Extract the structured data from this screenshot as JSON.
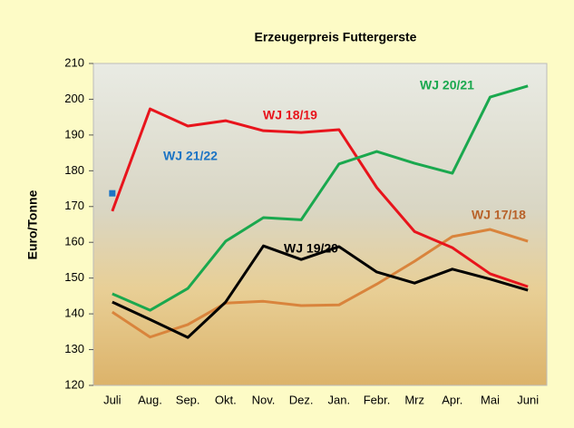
{
  "chart_data": {
    "type": "line",
    "title": "Erzeugerpreis Futtergerste",
    "y_label": "Euro/Tonne",
    "categories": [
      "Juli",
      "Aug.",
      "Sep.",
      "Okt.",
      "Nov.",
      "Dez.",
      "Jan.",
      "Febr.",
      "Mrz",
      "Apr.",
      "Mai",
      "Juni"
    ],
    "ylim": [
      120,
      210
    ],
    "yticks": [
      120,
      130,
      140,
      150,
      160,
      170,
      180,
      190,
      200,
      210
    ],
    "series": [
      {
        "name": "WJ 17/18",
        "color": "#d9843c",
        "label_color": "#b8622a",
        "values": [
          140.5,
          133.5,
          137,
          143,
          143.5,
          142.3,
          142.5,
          148.3,
          154.7,
          161.6,
          163.6,
          160.3
        ]
      },
      {
        "name": "WJ 18/19",
        "color": "#e8141c",
        "values": [
          168.7,
          197.3,
          192.5,
          194,
          191.2,
          190.7,
          191.5,
          175.3,
          163,
          158.5,
          151.2,
          147.6
        ]
      },
      {
        "name": "WJ 20/21",
        "color": "#1aa84e",
        "values": [
          145.6,
          141,
          147.1,
          160.3,
          166.9,
          166.3,
          181.9,
          185.4,
          182.1,
          179.3,
          200.6,
          203.7
        ]
      },
      {
        "name": "WJ 19/20",
        "color": "#000000",
        "values": [
          143.3,
          138.4,
          133.4,
          143.3,
          159,
          155.2,
          158.8,
          151.7,
          148.6,
          152.5,
          149.7,
          146.6
        ]
      },
      {
        "name": "WJ 21/22",
        "color": "#1c74c4",
        "values": [
          173.7,
          null,
          null,
          null,
          null,
          null,
          null,
          null,
          null,
          null,
          null,
          null
        ]
      }
    ]
  }
}
